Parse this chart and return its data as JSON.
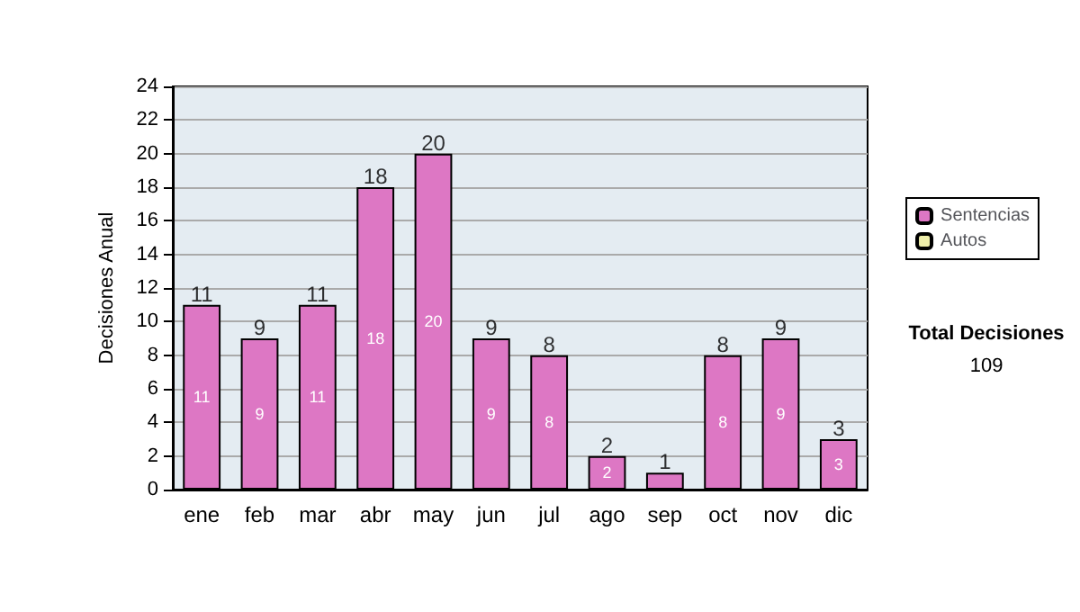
{
  "chart_data": {
    "type": "bar",
    "stacked": true,
    "ylabel": "Decisiones Anual",
    "categories": [
      "ene",
      "feb",
      "mar",
      "abr",
      "may",
      "jun",
      "jul",
      "ago",
      "sep",
      "oct",
      "nov",
      "dic"
    ],
    "series": [
      {
        "name": "Sentencias",
        "color": "#dd77c4",
        "values": [
          11,
          9,
          11,
          18,
          20,
          9,
          8,
          2,
          1,
          8,
          9,
          3
        ],
        "value_labels": [
          "11",
          "9",
          "11",
          "18",
          "20",
          "9",
          "8",
          "2",
          null,
          "8",
          "9",
          "3"
        ]
      },
      {
        "name": "Autos",
        "color": "#eeeeaa",
        "values": [
          null,
          null,
          null,
          null,
          null,
          null,
          null,
          null,
          null,
          null,
          null,
          null
        ]
      }
    ],
    "totals": [
      "11",
      "9",
      "11",
      "18",
      "20",
      "9",
      "8",
      "2",
      "1",
      "8",
      "9",
      "3"
    ],
    "ylim": [
      0,
      24
    ],
    "yticks": [
      0,
      2,
      4,
      6,
      8,
      10,
      12,
      14,
      16,
      18,
      20,
      22,
      24
    ],
    "grid": "y",
    "legend": "right",
    "annotations": [
      "Total Decisiones",
      "109"
    ]
  }
}
